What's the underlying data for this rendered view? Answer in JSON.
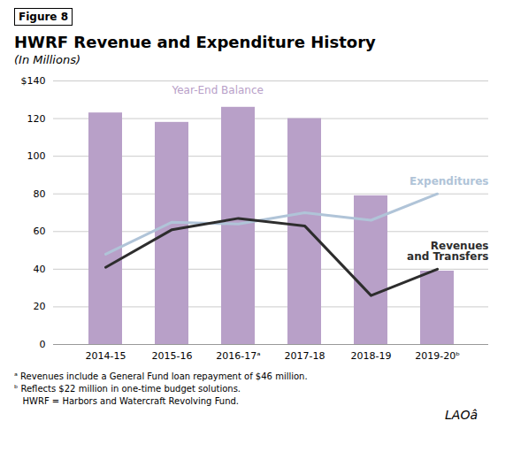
{
  "chart_data": {
    "type": "bar",
    "figure_label": "Figure 8",
    "title": "HWRF Revenue and Expenditure History",
    "subtitle": "(In Millions)",
    "categories": [
      "2014-15",
      "2015-16",
      "2016-17ᵃ",
      "2017-18",
      "2018-19",
      "2019-20ᵇ"
    ],
    "series": [
      {
        "name": "Year-End Balance",
        "type": "bar",
        "color": "#b8a0c8",
        "values": [
          123,
          118,
          126,
          120,
          79,
          39
        ]
      },
      {
        "name": "Expenditures",
        "type": "line",
        "color": "#b0c4d8",
        "values": [
          48,
          65,
          64,
          70,
          66,
          80
        ]
      },
      {
        "name": "Revenues\nand Transfers",
        "type": "line",
        "color": "#2d2d2d",
        "values": [
          41,
          61,
          67,
          63,
          26,
          40
        ]
      }
    ],
    "ylim": [
      0,
      140
    ],
    "yticks": [
      0,
      20,
      40,
      60,
      80,
      100,
      120,
      {
        "value": 140,
        "label": "$140"
      }
    ],
    "grid": true,
    "footnotes": [
      "ᵃ Revenues include a General Fund loan repayment of $46 million.",
      "ᵇ Reflects $22 million in one-time budget solutions.",
      "   HWRF = Harbors and Watercraft Revolving Fund."
    ],
    "watermark": "LAOâ"
  }
}
